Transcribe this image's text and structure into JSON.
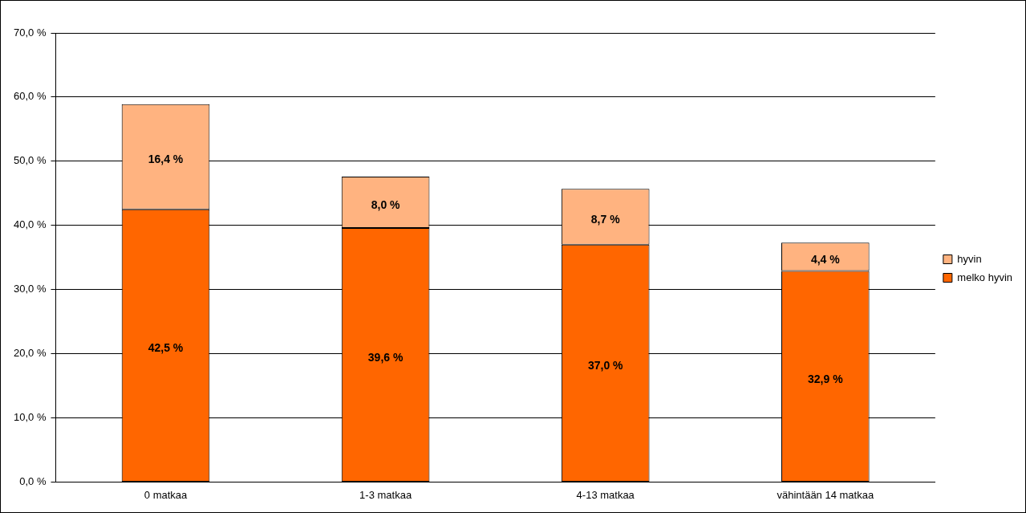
{
  "chart_data": {
    "type": "bar",
    "stacked": true,
    "categories": [
      "0 matkaa",
      "1-3 matkaa",
      "4-13 matkaa",
      "vähintään 14 matkaa"
    ],
    "series": [
      {
        "name": "melko hyvin",
        "color": "#ff6600",
        "values": [
          42.5,
          39.6,
          37.0,
          32.9
        ],
        "value_labels": [
          "42,5 %",
          "39,6 %",
          "37,0 %",
          "32,9 %"
        ]
      },
      {
        "name": "hyvin",
        "color": "#ffb380",
        "values": [
          16.4,
          8.0,
          8.7,
          4.4
        ],
        "value_labels": [
          "16,4 %",
          "8,0 %",
          "8,7 %",
          "4,4 %"
        ]
      }
    ],
    "ylim": [
      0,
      70
    ],
    "yticks": [
      {
        "value": 0,
        "label": "0,0 %"
      },
      {
        "value": 10,
        "label": "10,0 %"
      },
      {
        "value": 20,
        "label": "20,0 %"
      },
      {
        "value": 30,
        "label": "30,0 %"
      },
      {
        "value": 40,
        "label": "40,0 %"
      },
      {
        "value": 50,
        "label": "50,0 %"
      },
      {
        "value": 60,
        "label": "60,0 %"
      },
      {
        "value": 70,
        "label": "70,0 %"
      }
    ],
    "grid": "y",
    "legend": "right"
  }
}
